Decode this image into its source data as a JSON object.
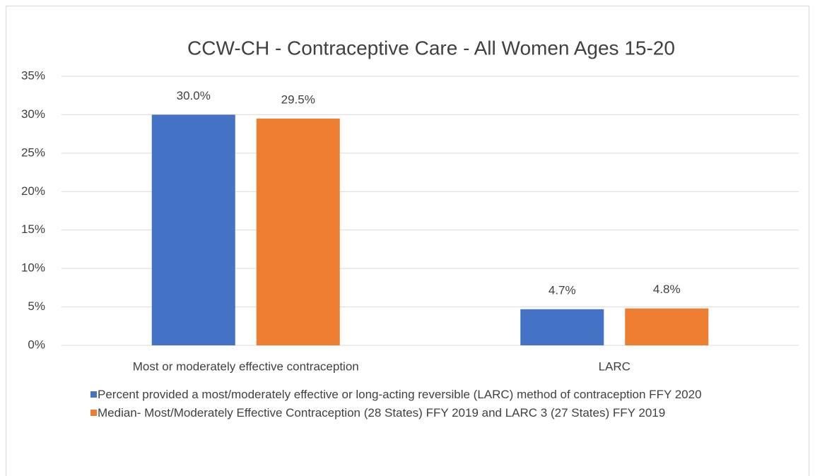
{
  "chart_data": {
    "type": "bar",
    "title": "CCW-CH - Contraceptive Care - All Women Ages 15-20",
    "categories": [
      "Most or moderately effective contraception",
      "LARC"
    ],
    "series": [
      {
        "name": "Percent provided a most/moderately effective or long-acting reversible (LARC) method of contraception FFY 2020",
        "color": "#4472c4",
        "values": [
          30.0,
          4.7
        ],
        "value_labels": [
          "30.0%",
          "4.7%"
        ]
      },
      {
        "name": "Median- Most/Moderately Effective Contraception (28 States) FFY 2019 and LARC 3 (27 States) FFY 2019",
        "color": "#ed7d31",
        "values": [
          29.5,
          4.8
        ],
        "value_labels": [
          "29.5%",
          "4.8%"
        ]
      }
    ],
    "ylim": [
      0,
      35
    ],
    "yticks": [
      {
        "value": 0,
        "label": "0%"
      },
      {
        "value": 5,
        "label": "5%"
      },
      {
        "value": 10,
        "label": "10%"
      },
      {
        "value": 15,
        "label": "15%"
      },
      {
        "value": 20,
        "label": "20%"
      },
      {
        "value": 25,
        "label": "25%"
      },
      {
        "value": 30,
        "label": "30%"
      },
      {
        "value": 35,
        "label": "35%"
      }
    ],
    "grid": true,
    "legend": "bottom"
  }
}
